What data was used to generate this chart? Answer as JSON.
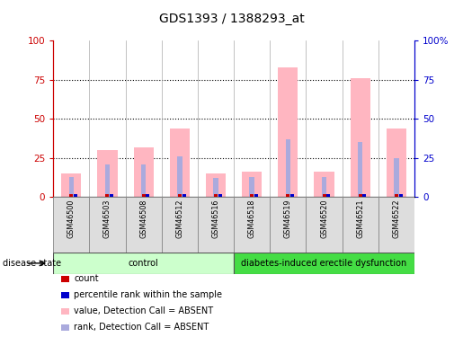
{
  "title": "GDS1393 / 1388293_at",
  "samples": [
    "GSM46500",
    "GSM46503",
    "GSM46508",
    "GSM46512",
    "GSM46516",
    "GSM46518",
    "GSM46519",
    "GSM46520",
    "GSM46521",
    "GSM46522"
  ],
  "pink_bar_heights": [
    15,
    30,
    32,
    44,
    15,
    16,
    83,
    16,
    76,
    44
  ],
  "blue_bar_heights": [
    13,
    21,
    21,
    26,
    12,
    13,
    37,
    13,
    35,
    25
  ],
  "red_dot_y": [
    1,
    1,
    1,
    1,
    1,
    1,
    1,
    1,
    1,
    1
  ],
  "blue_dot_y": [
    1,
    1,
    1,
    1,
    1,
    1,
    1,
    1,
    1,
    1
  ],
  "groups": [
    {
      "label": "control",
      "start": 0,
      "end": 5,
      "color": "#CCFFCC"
    },
    {
      "label": "diabetes-induced erectile dysfunction",
      "start": 5,
      "end": 10,
      "color": "#44DD44"
    }
  ],
  "ylim": [
    0,
    100
  ],
  "yticks": [
    0,
    25,
    50,
    75,
    100
  ],
  "ytick_labels_left": [
    "0",
    "25",
    "50",
    "75",
    "100"
  ],
  "ytick_labels_right": [
    "0",
    "25",
    "50",
    "75",
    "100%"
  ],
  "left_axis_color": "#CC0000",
  "right_axis_color": "#0000CC",
  "pink_color": "#FFB6C1",
  "blue_bar_color": "#AAAADD",
  "sample_box_color": "#DDDDDD",
  "legend_items": [
    {
      "color": "#CC0000",
      "label": "count"
    },
    {
      "color": "#0000CC",
      "label": "percentile rank within the sample"
    },
    {
      "color": "#FFB6C1",
      "label": "value, Detection Call = ABSENT"
    },
    {
      "color": "#AAAADD",
      "label": "rank, Detection Call = ABSENT"
    }
  ],
  "disease_state_label": "disease state"
}
